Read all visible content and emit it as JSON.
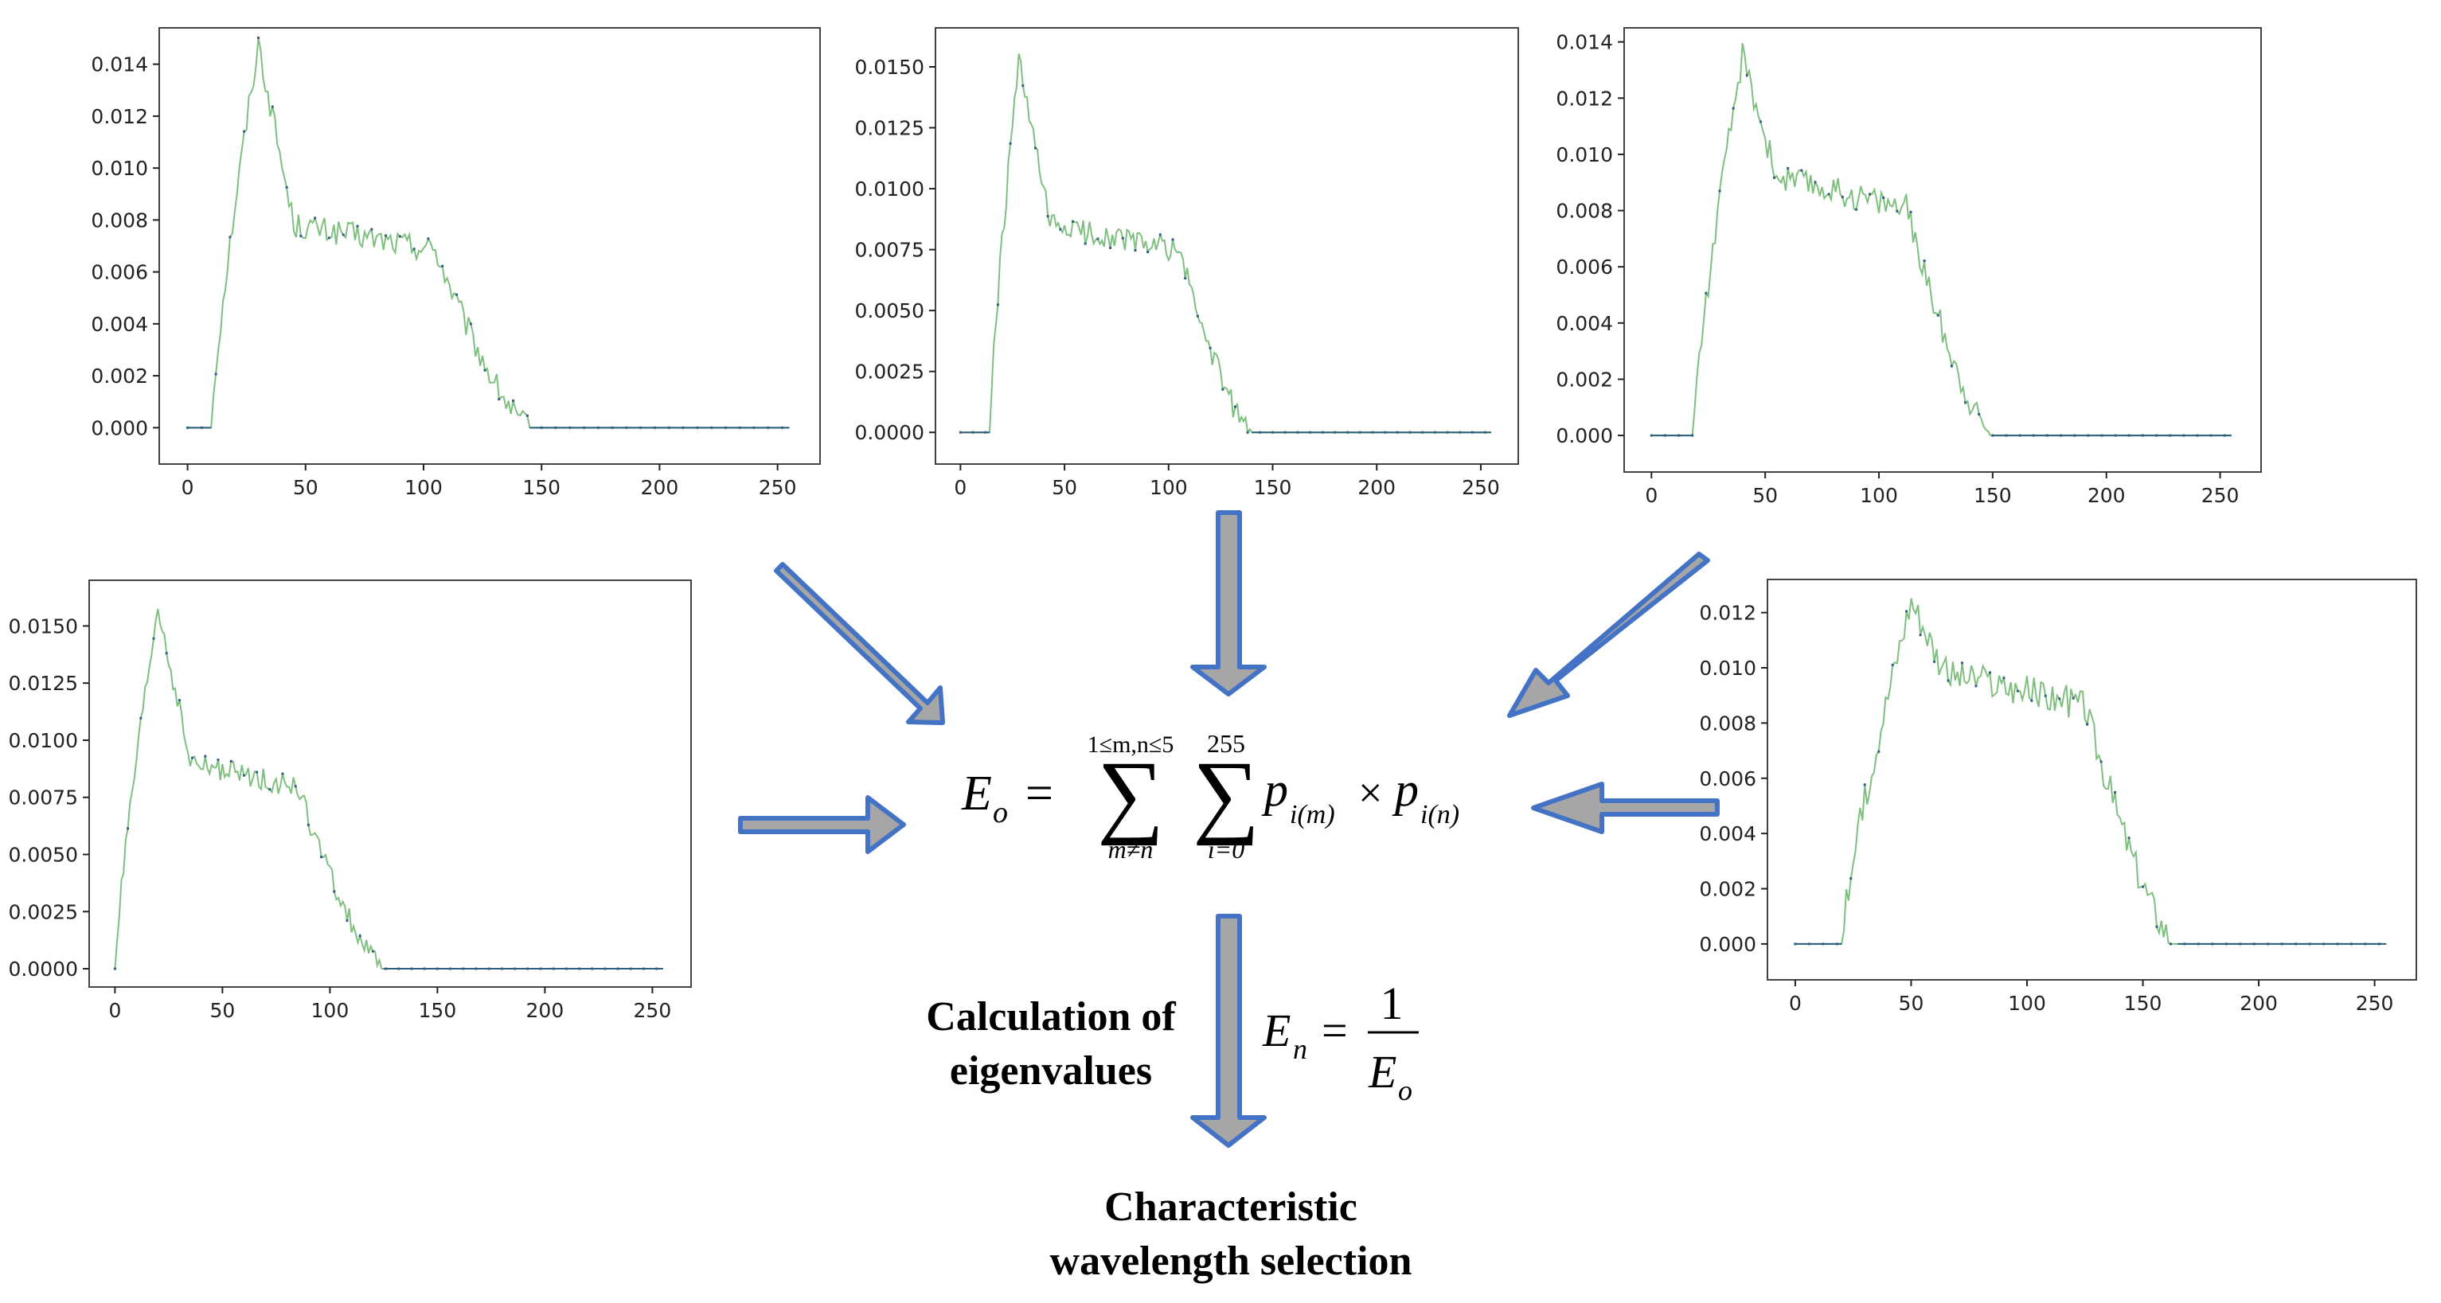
{
  "colors": {
    "line": "#7fbf7f",
    "marker": "#2f5f7f",
    "arrow_fill": "#a6a6a6",
    "arrow_stroke": "#4472c4",
    "frame": "#444444"
  },
  "formula": {
    "E_o_sym": "E",
    "E_o_sub": "o",
    "equals": "=",
    "sum1_upper": "1≤m,n≤5",
    "sum1_lower": "m≠n",
    "sum2_upper": "255",
    "sum2_lower": "i=0",
    "sigma": "∑",
    "p": "p",
    "sub_m": "i(m)",
    "sub_n": "i(n)",
    "times": "×",
    "En_sym": "E",
    "En_sub": "n",
    "one": "1",
    "Eo_den_sym": "E",
    "Eo_den_sub": "o"
  },
  "labels": {
    "calc_line1": "Calculation of",
    "calc_line2": "eigenvalues",
    "char_line1": "Characteristic",
    "char_line2": "wavelength selection"
  },
  "chart_data": [
    {
      "type": "line",
      "xlim": [
        -12,
        268
      ],
      "x_ticks": [
        "0",
        "50",
        "100",
        "150",
        "200",
        "250"
      ],
      "ylim": [
        -0.0014,
        0.0154
      ],
      "y_ticks": [
        "0.000",
        "0.002",
        "0.004",
        "0.006",
        "0.008",
        "0.010",
        "0.012",
        "0.014"
      ],
      "series_profile": {
        "start": 10,
        "peak_x": 30,
        "peak": 0.0148,
        "plateau": 0.0078,
        "plateau_end": 105,
        "zero_at": 145,
        "noise": 0.0005
      }
    },
    {
      "type": "line",
      "xlim": [
        -12,
        268
      ],
      "x_ticks": [
        "0",
        "50",
        "100",
        "150",
        "200",
        "250"
      ],
      "ylim": [
        -0.0013,
        0.0166
      ],
      "y_ticks": [
        "0.0000",
        "0.0025",
        "0.0050",
        "0.0075",
        "0.0100",
        "0.0125",
        "0.0150"
      ],
      "series_profile": {
        "start": 14,
        "peak_x": 28,
        "peak": 0.0152,
        "plateau": 0.0085,
        "plateau_end": 105,
        "zero_at": 140,
        "noise": 0.0005
      }
    },
    {
      "type": "line",
      "xlim": [
        -12,
        268
      ],
      "x_ticks": [
        "0",
        "50",
        "100",
        "150",
        "200",
        "250"
      ],
      "ylim": [
        -0.0013,
        0.0145
      ],
      "y_ticks": [
        "0.000",
        "0.002",
        "0.004",
        "0.006",
        "0.008",
        "0.010",
        "0.012",
        "0.014"
      ],
      "series_profile": {
        "start": 18,
        "peak_x": 40,
        "peak": 0.0135,
        "plateau": 0.0092,
        "plateau_end": 112,
        "zero_at": 150,
        "noise": 0.0005
      }
    },
    {
      "type": "line",
      "xlim": [
        -12,
        268
      ],
      "x_ticks": [
        "0",
        "50",
        "100",
        "150",
        "200",
        "250"
      ],
      "ylim": [
        -0.0008,
        0.017
      ],
      "y_ticks": [
        "0.0000",
        "0.0025",
        "0.0050",
        "0.0075",
        "0.0100",
        "0.0125",
        "0.0150"
      ],
      "series_profile": {
        "start": 0,
        "peak_x": 20,
        "peak": 0.0158,
        "plateau": 0.009,
        "plateau_end": 85,
        "zero_at": 125,
        "noise": 0.0005
      }
    },
    {
      "type": "line",
      "xlim": [
        -12,
        268
      ],
      "x_ticks": [
        "0",
        "50",
        "100",
        "150",
        "200",
        "250"
      ],
      "ylim": [
        -0.0013,
        0.0132
      ],
      "y_ticks": [
        "0.000",
        "0.002",
        "0.004",
        "0.006",
        "0.008",
        "0.010",
        "0.012"
      ],
      "series_profile": {
        "start": 20,
        "peak_x": 50,
        "peak": 0.0125,
        "plateau": 0.0098,
        "plateau_end": 125,
        "zero_at": 165,
        "noise": 0.0006
      }
    }
  ]
}
